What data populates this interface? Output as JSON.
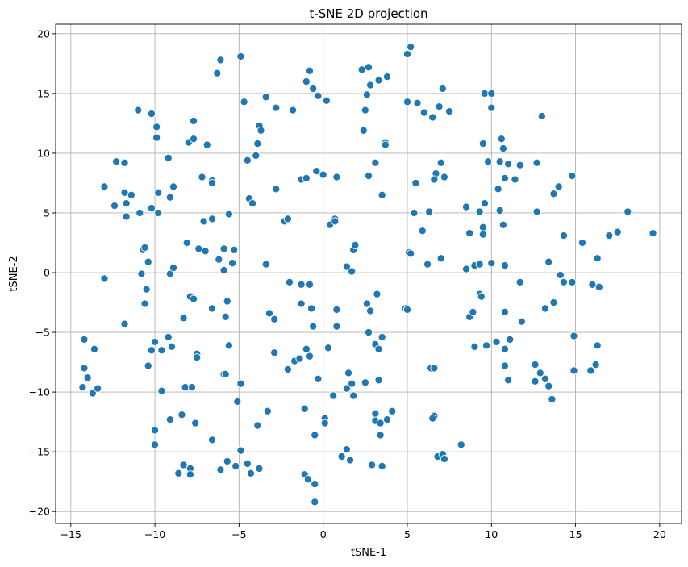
{
  "chart_data": {
    "type": "scatter",
    "title": "t-SNE 2D projection",
    "xlabel": "tSNE-1",
    "ylabel": "tSNE-2",
    "xlim": [
      -15.9,
      21.3
    ],
    "ylim": [
      -21.0,
      20.8
    ],
    "xticks": [
      -15,
      -10,
      -5,
      0,
      5,
      10,
      15,
      20
    ],
    "yticks": [
      -20,
      -15,
      -10,
      -5,
      0,
      5,
      10,
      15,
      20
    ],
    "xtick_labels": [
      "−15",
      "−10",
      "−5",
      "0",
      "5",
      "10",
      "15",
      "20"
    ],
    "ytick_labels": [
      "−20",
      "−15",
      "−10",
      "−5",
      "0",
      "5",
      "10",
      "15",
      "20"
    ],
    "grid": true,
    "marker_color": "#1f77b4",
    "series": [
      {
        "points": [
          [
            -6.1,
            17.8
          ],
          [
            -6.3,
            16.7
          ],
          [
            -4.9,
            18.1
          ],
          [
            5.0,
            18.3
          ],
          [
            5.2,
            18.9
          ],
          [
            2.3,
            17.0
          ],
          [
            2.7,
            17.2
          ],
          [
            1.6,
            -15.7
          ],
          [
            -1.0,
            16.0
          ],
          [
            -0.8,
            16.9
          ],
          [
            -0.6,
            15.4
          ],
          [
            -0.3,
            14.8
          ],
          [
            0.2,
            14.4
          ],
          [
            2.8,
            15.7
          ],
          [
            3.3,
            16.1
          ],
          [
            3.8,
            16.4
          ],
          [
            -4.7,
            14.3
          ],
          [
            -3.4,
            14.7
          ],
          [
            -2.8,
            13.8
          ],
          [
            -1.8,
            13.6
          ],
          [
            2.6,
            14.9
          ],
          [
            2.5,
            13.6
          ],
          [
            5.0,
            14.3
          ],
          [
            5.6,
            14.2
          ],
          [
            6.0,
            13.4
          ],
          [
            6.5,
            13.0
          ],
          [
            6.9,
            13.9
          ],
          [
            7.1,
            15.4
          ],
          [
            7.5,
            13.5
          ],
          [
            9.6,
            15.0
          ],
          [
            10.0,
            15.0
          ],
          [
            10.0,
            13.8
          ],
          [
            13.0,
            13.1
          ],
          [
            -11.0,
            13.6
          ],
          [
            -10.2,
            13.3
          ],
          [
            -9.9,
            12.2
          ],
          [
            -9.9,
            11.3
          ],
          [
            -7.7,
            12.7
          ],
          [
            -8.0,
            10.9
          ],
          [
            -7.7,
            11.2
          ],
          [
            -6.9,
            10.7
          ],
          [
            -3.8,
            12.3
          ],
          [
            -3.7,
            11.9
          ],
          [
            -3.9,
            10.8
          ],
          [
            -4.0,
            9.8
          ],
          [
            -4.5,
            9.4
          ],
          [
            2.4,
            11.9
          ],
          [
            3.7,
            10.9
          ],
          [
            3.7,
            10.7
          ],
          [
            9.5,
            10.8
          ],
          [
            10.6,
            11.2
          ],
          [
            10.7,
            10.4
          ],
          [
            11.0,
            9.1
          ],
          [
            11.7,
            9.0
          ],
          [
            12.7,
            9.2
          ],
          [
            9.8,
            9.3
          ],
          [
            10.5,
            9.3
          ],
          [
            -12.3,
            9.3
          ],
          [
            -11.8,
            9.2
          ],
          [
            -9.2,
            9.6
          ],
          [
            -7.2,
            8.0
          ],
          [
            -6.6,
            7.7
          ],
          [
            -6.6,
            7.5
          ],
          [
            -1.3,
            7.8
          ],
          [
            -1.0,
            7.9
          ],
          [
            -0.4,
            8.5
          ],
          [
            0.0,
            8.2
          ],
          [
            0.8,
            8.0
          ],
          [
            2.7,
            8.1
          ],
          [
            3.1,
            9.2
          ],
          [
            6.7,
            8.3
          ],
          [
            7.0,
            9.2
          ],
          [
            7.2,
            8.0
          ],
          [
            6.6,
            7.8
          ],
          [
            10.8,
            7.9
          ],
          [
            11.4,
            7.8
          ],
          [
            10.4,
            7.0
          ],
          [
            14.8,
            8.1
          ],
          [
            -13.0,
            7.2
          ],
          [
            -12.4,
            5.6
          ],
          [
            -11.8,
            6.7
          ],
          [
            -11.4,
            6.5
          ],
          [
            -11.7,
            5.8
          ],
          [
            -11.7,
            4.7
          ],
          [
            -10.9,
            5.0
          ],
          [
            -10.2,
            5.4
          ],
          [
            -9.8,
            6.7
          ],
          [
            -9.8,
            5.0
          ],
          [
            -9.1,
            6.3
          ],
          [
            -8.9,
            7.2
          ],
          [
            -2.8,
            7.0
          ],
          [
            -4.4,
            6.2
          ],
          [
            -4.2,
            5.8
          ],
          [
            -7.1,
            4.3
          ],
          [
            -6.6,
            4.5
          ],
          [
            -5.6,
            4.9
          ],
          [
            -2.3,
            4.3
          ],
          [
            -2.1,
            4.5
          ],
          [
            0.4,
            4.0
          ],
          [
            0.7,
            4.5
          ],
          [
            0.7,
            4.3
          ],
          [
            3.5,
            6.5
          ],
          [
            5.5,
            7.5
          ],
          [
            5.4,
            5.0
          ],
          [
            6.3,
            5.1
          ],
          [
            5.9,
            3.5
          ],
          [
            8.5,
            5.5
          ],
          [
            9.3,
            5.1
          ],
          [
            9.6,
            5.8
          ],
          [
            10.5,
            5.2
          ],
          [
            12.7,
            5.1
          ],
          [
            13.7,
            6.6
          ],
          [
            14.0,
            7.2
          ],
          [
            10.7,
            4.0
          ],
          [
            9.5,
            3.8
          ],
          [
            9.5,
            3.2
          ],
          [
            8.7,
            3.3
          ],
          [
            14.3,
            3.1
          ],
          [
            15.4,
            2.5
          ],
          [
            17.0,
            3.1
          ],
          [
            17.5,
            3.4
          ],
          [
            18.1,
            5.1
          ],
          [
            19.6,
            3.3
          ],
          [
            -13.0,
            -0.5
          ],
          [
            -10.7,
            1.9
          ],
          [
            -10.6,
            2.1
          ],
          [
            -10.4,
            0.9
          ],
          [
            -10.8,
            -0.1
          ],
          [
            -10.5,
            -1.4
          ],
          [
            -10.6,
            -2.6
          ],
          [
            -9.1,
            -0.1
          ],
          [
            -8.9,
            0.4
          ],
          [
            -8.1,
            2.5
          ],
          [
            -7.4,
            2.0
          ],
          [
            -7.0,
            1.8
          ],
          [
            -6.2,
            1.1
          ],
          [
            -5.9,
            2.0
          ],
          [
            -5.3,
            1.9
          ],
          [
            -5.9,
            0.2
          ],
          [
            -5.4,
            0.8
          ],
          [
            -3.4,
            0.7
          ],
          [
            1.4,
            0.5
          ],
          [
            1.7,
            0.1
          ],
          [
            1.8,
            1.9
          ],
          [
            1.9,
            2.3
          ],
          [
            5.1,
            1.7
          ],
          [
            5.2,
            1.6
          ],
          [
            6.2,
            0.7
          ],
          [
            7.0,
            1.2
          ],
          [
            8.5,
            0.3
          ],
          [
            9.0,
            0.6
          ],
          [
            9.3,
            0.7
          ],
          [
            10.0,
            0.8
          ],
          [
            10.8,
            0.6
          ],
          [
            11.7,
            -0.8
          ],
          [
            13.4,
            0.9
          ],
          [
            14.1,
            -0.2
          ],
          [
            14.3,
            -0.8
          ],
          [
            14.8,
            -0.8
          ],
          [
            16.0,
            -1.0
          ],
          [
            16.3,
            1.2
          ],
          [
            16.4,
            -1.2
          ],
          [
            -11.8,
            -4.3
          ],
          [
            -7.9,
            -2.0
          ],
          [
            -7.7,
            -2.2
          ],
          [
            -6.6,
            -3.0
          ],
          [
            -5.7,
            -2.4
          ],
          [
            -5.8,
            -3.7
          ],
          [
            -8.3,
            -3.8
          ],
          [
            -2.0,
            -0.8
          ],
          [
            -1.3,
            -1.0
          ],
          [
            -0.8,
            -1.0
          ],
          [
            -1.3,
            -2.6
          ],
          [
            -3.2,
            -3.4
          ],
          [
            -2.9,
            -3.9
          ],
          [
            -0.7,
            -3.0
          ],
          [
            -0.6,
            -4.5
          ],
          [
            0.8,
            -3.1
          ],
          [
            0.8,
            -4.5
          ],
          [
            2.6,
            -2.6
          ],
          [
            2.8,
            -3.2
          ],
          [
            3.2,
            -1.8
          ],
          [
            4.9,
            -3.0
          ],
          [
            5.0,
            -3.1
          ],
          [
            8.7,
            -3.7
          ],
          [
            8.9,
            -3.3
          ],
          [
            9.3,
            -1.8
          ],
          [
            9.4,
            -2.0
          ],
          [
            10.8,
            -3.3
          ],
          [
            11.8,
            -4.1
          ],
          [
            13.2,
            -3.0
          ],
          [
            13.7,
            -2.5
          ],
          [
            -14.2,
            -5.6
          ],
          [
            -13.6,
            -6.4
          ],
          [
            -14.2,
            -8.0
          ],
          [
            -14.0,
            -8.8
          ],
          [
            -14.3,
            -9.6
          ],
          [
            -13.7,
            -10.1
          ],
          [
            -13.4,
            -9.7
          ],
          [
            -10.0,
            -5.8
          ],
          [
            -9.6,
            -6.5
          ],
          [
            -10.4,
            -7.8
          ],
          [
            -10.2,
            -6.5
          ],
          [
            -9.2,
            -5.4
          ],
          [
            -9.0,
            -6.2
          ],
          [
            -7.5,
            -6.8
          ],
          [
            -7.5,
            -7.1
          ],
          [
            -5.6,
            -6.1
          ],
          [
            -5.9,
            -8.5
          ],
          [
            -5.8,
            -8.5
          ],
          [
            -5.1,
            -10.8
          ],
          [
            -4.9,
            -9.3
          ],
          [
            -2.9,
            -6.7
          ],
          [
            -2.1,
            -8.1
          ],
          [
            -1.7,
            -7.4
          ],
          [
            -1.4,
            -7.2
          ],
          [
            -1.0,
            -6.4
          ],
          [
            -0.8,
            -7.0
          ],
          [
            -0.3,
            -8.9
          ],
          [
            0.3,
            -6.3
          ],
          [
            1.5,
            -8.4
          ],
          [
            1.7,
            -9.3
          ],
          [
            1.8,
            -10.3
          ],
          [
            1.4,
            -9.7
          ],
          [
            2.7,
            -5.0
          ],
          [
            3.1,
            -6.0
          ],
          [
            3.3,
            -6.4
          ],
          [
            3.5,
            -5.4
          ],
          [
            2.5,
            -9.2
          ],
          [
            3.3,
            -9.0
          ],
          [
            0.6,
            -10.3
          ],
          [
            -9.6,
            -9.9
          ],
          [
            -8.2,
            -9.6
          ],
          [
            -7.8,
            -9.6
          ],
          [
            -8.4,
            -11.9
          ],
          [
            -7.6,
            -12.6
          ],
          [
            -6.6,
            -14.0
          ],
          [
            -4.9,
            -14.9
          ],
          [
            -10.0,
            -13.2
          ],
          [
            -10.0,
            -14.4
          ],
          [
            -9.1,
            -12.3
          ],
          [
            -3.9,
            -12.8
          ],
          [
            -3.3,
            -11.6
          ],
          [
            -1.1,
            -11.4
          ],
          [
            -0.5,
            -13.6
          ],
          [
            0.1,
            -12.2
          ],
          [
            0.1,
            -12.6
          ],
          [
            1.1,
            -15.4
          ],
          [
            1.4,
            -14.8
          ],
          [
            3.1,
            -11.8
          ],
          [
            3.1,
            -12.4
          ],
          [
            3.4,
            -12.6
          ],
          [
            3.4,
            -13.6
          ],
          [
            3.8,
            -12.3
          ],
          [
            4.1,
            -11.6
          ],
          [
            6.4,
            -8.0
          ],
          [
            6.6,
            -8.0
          ],
          [
            6.6,
            -12.0
          ],
          [
            6.5,
            -12.2
          ],
          [
            6.8,
            -15.4
          ],
          [
            7.1,
            -15.2
          ],
          [
            7.2,
            -15.6
          ],
          [
            8.2,
            -14.4
          ],
          [
            2.9,
            -16.1
          ],
          [
            3.5,
            -16.2
          ],
          [
            9.0,
            -6.2
          ],
          [
            9.7,
            -6.1
          ],
          [
            10.3,
            -5.8
          ],
          [
            10.8,
            -6.4
          ],
          [
            11.1,
            -5.6
          ],
          [
            10.8,
            -7.8
          ],
          [
            11.0,
            -9.0
          ],
          [
            12.6,
            -7.7
          ],
          [
            12.9,
            -8.4
          ],
          [
            13.2,
            -8.9
          ],
          [
            12.6,
            -9.1
          ],
          [
            13.4,
            -9.5
          ],
          [
            13.6,
            -10.6
          ],
          [
            14.9,
            -5.3
          ],
          [
            14.9,
            -8.2
          ],
          [
            16.3,
            -6.1
          ],
          [
            15.9,
            -8.2
          ],
          [
            16.2,
            -7.7
          ],
          [
            -8.6,
            -16.8
          ],
          [
            -8.3,
            -16.1
          ],
          [
            -7.9,
            -16.4
          ],
          [
            -7.9,
            -16.9
          ],
          [
            -6.1,
            -16.5
          ],
          [
            -5.7,
            -15.8
          ],
          [
            -5.2,
            -16.2
          ],
          [
            -4.5,
            -16.0
          ],
          [
            -4.3,
            -16.8
          ],
          [
            -3.8,
            -16.4
          ],
          [
            -1.1,
            -16.9
          ],
          [
            -0.9,
            -17.3
          ],
          [
            -0.5,
            -17.7
          ],
          [
            -0.5,
            -19.2
          ]
        ]
      }
    ]
  }
}
